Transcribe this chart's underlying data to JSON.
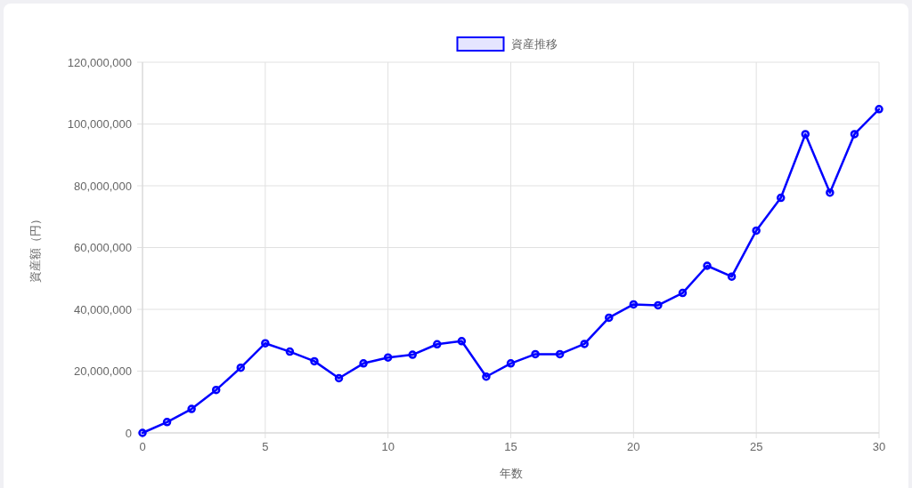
{
  "chart_data": {
    "type": "line",
    "xlabel": "年数",
    "ylabel": "資産額（円）",
    "x": [
      0,
      1,
      2,
      3,
      4,
      5,
      6,
      7,
      8,
      9,
      10,
      11,
      12,
      13,
      14,
      15,
      16,
      17,
      18,
      19,
      20,
      21,
      22,
      23,
      24,
      25,
      26,
      27,
      28,
      29,
      30
    ],
    "series": [
      {
        "name": "資産推移",
        "color": "#0000ff",
        "values": [
          0,
          3500000,
          7750000,
          13900000,
          21100000,
          29000000,
          26300000,
          23200000,
          17700000,
          22500000,
          24400000,
          25300000,
          28700000,
          29700000,
          18200000,
          22500000,
          25500000,
          25500000,
          28800000,
          37300000,
          41600000,
          41300000,
          45300000,
          54100000,
          50600000,
          65500000,
          76100000,
          96700000,
          77800000,
          96700000,
          104800000
        ]
      }
    ],
    "xlim": [
      0,
      30
    ],
    "xticks": [
      0,
      5,
      10,
      15,
      20,
      25,
      30
    ],
    "ylim": [
      0,
      120000000
    ],
    "yticks": [
      {
        "value": 0,
        "label": "0"
      },
      {
        "value": 20000000,
        "label": "20,000,000"
      },
      {
        "value": 40000000,
        "label": "40,000,000"
      },
      {
        "value": 60000000,
        "label": "60,000,000"
      },
      {
        "value": 80000000,
        "label": "80,000,000"
      },
      {
        "value": 100000000,
        "label": "100,000,000"
      },
      {
        "value": 120000000,
        "label": "120,000,000"
      }
    ],
    "grid": true,
    "legend": "top",
    "marker": "circle",
    "line_style": "solid"
  }
}
